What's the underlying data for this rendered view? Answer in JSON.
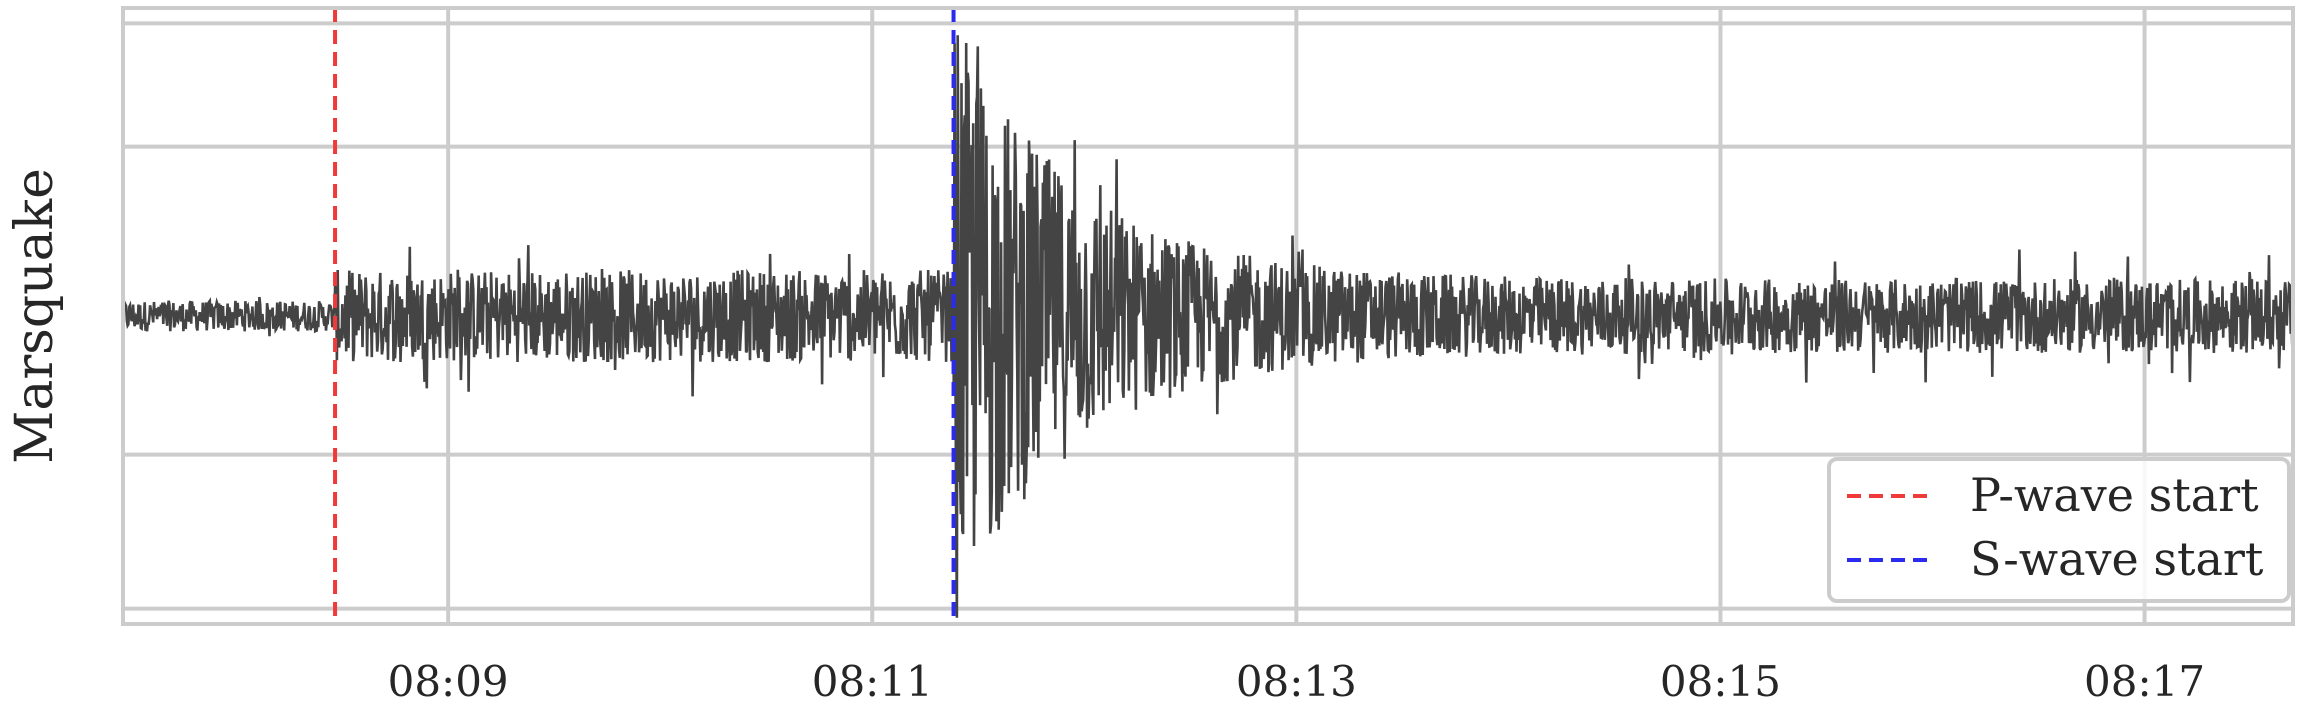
{
  "chart_data": {
    "type": "line",
    "title": "",
    "xlabel": "",
    "ylabel": "Marsquake",
    "x_range": [
      "08:07:28",
      "08:17:42"
    ],
    "y_range": [
      -1,
      1
    ],
    "x_ticks": [
      "08:09",
      "08:11",
      "08:13",
      "08:15",
      "08:17"
    ],
    "grid": true,
    "legend_position": "lower-right",
    "series": [
      {
        "kind": "waveform",
        "color": "#444444"
      }
    ],
    "markers": [
      {
        "name": "P-wave start",
        "x": "08:08:28",
        "color": "#f03a3a",
        "style": "dashed"
      },
      {
        "name": "S-wave start",
        "x": "08:11:23",
        "color": "#2b2bf0",
        "style": "dashed"
      }
    ]
  }
}
